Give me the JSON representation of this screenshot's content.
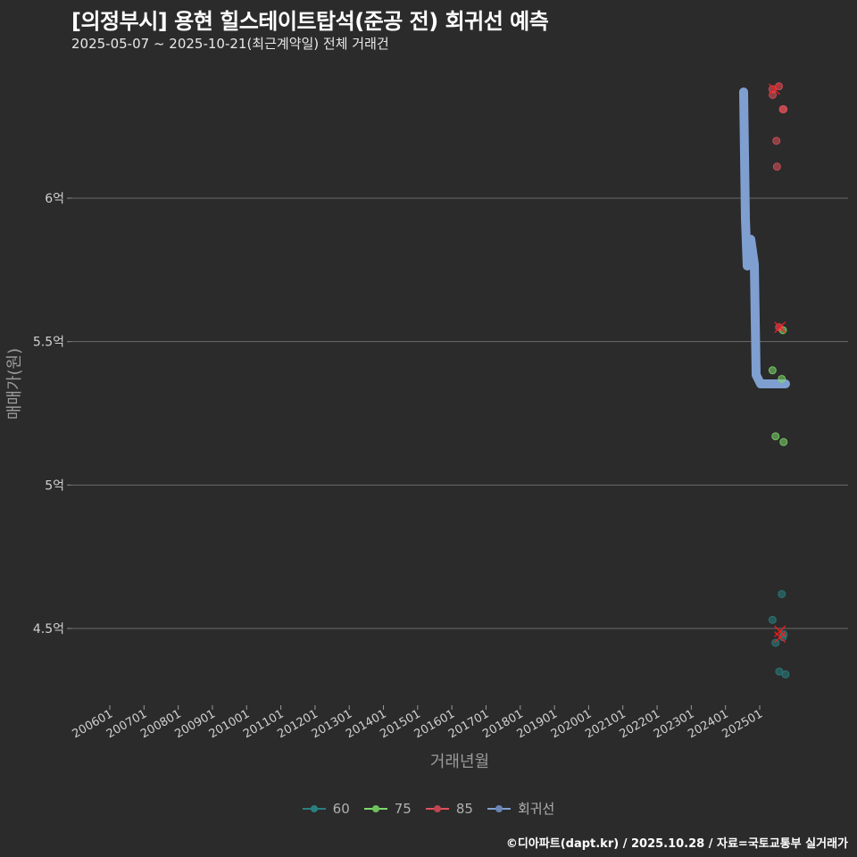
{
  "header": {
    "title": "[의정부시] 용현 힐스테이트탑석(준공 전) 회귀선 예측",
    "subtitle": "2025-05-07 ~ 2025-10-21(최근계약일) 전체 거래건"
  },
  "caption": "©디아파트(dapt.kr) / 2025.10.28 / 자료=국토교통부 실거래가",
  "legend": {
    "items": [
      {
        "label": "60",
        "color": "#2a7f7f"
      },
      {
        "label": "75",
        "color": "#7fd96a"
      },
      {
        "label": "85",
        "color": "#e0505a"
      },
      {
        "label": "회귀선",
        "color": "#7f9fd0"
      }
    ]
  },
  "colors": {
    "background": "#2b2b2c",
    "grid": "#6a6a6a",
    "regression": "#7f9fd0",
    "cancel_mark": "#ff1a1a"
  },
  "chart_data": {
    "type": "scatter",
    "title": "[의정부시] 용현 힐스테이트탑석(준공 전) 회귀선 예측",
    "subtitle": "2025-05-07 ~ 2025-10-21(최근계약일) 전체 거래건",
    "xlabel": "거래년월",
    "ylabel": "매매가(원)",
    "x_tick_labels": [
      "200601",
      "200701",
      "200801",
      "200901",
      "201001",
      "201101",
      "201201",
      "201301",
      "201401",
      "201501",
      "201601",
      "201701",
      "201801",
      "201901",
      "202001",
      "202101",
      "202201",
      "202301",
      "202401",
      "202501"
    ],
    "y_tick_labels": [
      "4.5억",
      "5억",
      "5.5억",
      "6억"
    ],
    "y_ticks": [
      45000,
      50000,
      55000,
      60000
    ],
    "y_unit": "만원",
    "ylim": [
      42700,
      64800
    ],
    "grid": "horizontal",
    "legend_position": "bottom",
    "series": [
      {
        "name": "60",
        "color": "#2a7f7f",
        "points": [
          {
            "x": "2025-05",
            "y": 45300
          },
          {
            "x": "2025-07",
            "y": 46200
          },
          {
            "x": "2025-07",
            "y": 44500
          },
          {
            "x": "2025-07",
            "y": 44800
          },
          {
            "x": "2025-08",
            "y": 44700
          },
          {
            "x": "2025-08",
            "y": 43500
          },
          {
            "x": "2025-08",
            "y": 43400
          }
        ]
      },
      {
        "name": "75",
        "color": "#7fd96a",
        "points": [
          {
            "x": "2025-05",
            "y": 54000
          },
          {
            "x": "2025-07",
            "y": 53700
          },
          {
            "x": "2025-07",
            "y": 51700
          },
          {
            "x": "2025-07",
            "y": 51500
          },
          {
            "x": "2025-08",
            "y": 55400
          }
        ]
      },
      {
        "name": "85",
        "color": "#e0505a",
        "points": [
          {
            "x": "2025-05",
            "y": 63800
          },
          {
            "x": "2025-06",
            "y": 63900
          },
          {
            "x": "2025-06",
            "y": 63600
          },
          {
            "x": "2025-07",
            "y": 63100
          },
          {
            "x": "2025-08",
            "y": 63100
          },
          {
            "x": "2025-07",
            "y": 62000
          },
          {
            "x": "2025-05",
            "y": 61100
          },
          {
            "x": "2025-07",
            "y": 55500
          }
        ]
      },
      {
        "name": "회귀선",
        "color": "#7f9fd0",
        "type": "line",
        "points": [
          {
            "x": "2024-04",
            "y": 63800
          },
          {
            "x": "2024-06",
            "y": 57600
          },
          {
            "x": "2024-07",
            "y": 58600
          },
          {
            "x": "2024-09",
            "y": 57800
          },
          {
            "x": "2024-10",
            "y": 53900
          },
          {
            "x": "2024-11",
            "y": 53600
          },
          {
            "x": "2025-08",
            "y": 53600
          }
        ]
      }
    ],
    "cancelled_marks": [
      {
        "x": "2025-05",
        "y": 63800
      },
      {
        "x": "2025-07",
        "y": 55500
      },
      {
        "x": "2025-07",
        "y": 44900
      },
      {
        "x": "2025-07",
        "y": 44700
      }
    ]
  }
}
